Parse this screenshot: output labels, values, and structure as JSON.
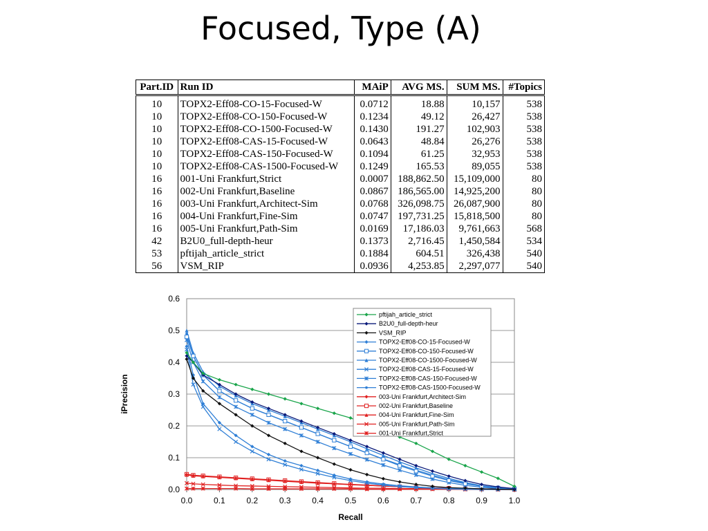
{
  "slide": {
    "title": "Focused, Type (A)"
  },
  "table": {
    "columns": [
      "Part.ID",
      "Run ID",
      "MAiP",
      "AVG MS.",
      "SUM MS.",
      "#Topics"
    ],
    "rows": [
      [
        "10",
        "TOPX2-Eff08-CO-15-Focused-W",
        "0.0712",
        "18.88",
        "10,157",
        "538"
      ],
      [
        "10",
        "TOPX2-Eff08-CO-150-Focused-W",
        "0.1234",
        "49.12",
        "26,427",
        "538"
      ],
      [
        "10",
        "TOPX2-Eff08-CO-1500-Focused-W",
        "0.1430",
        "191.27",
        "102,903",
        "538"
      ],
      [
        "10",
        "TOPX2-Eff08-CAS-15-Focused-W",
        "0.0643",
        "48.84",
        "26,276",
        "538"
      ],
      [
        "10",
        "TOPX2-Eff08-CAS-150-Focused-W",
        "0.1094",
        "61.25",
        "32,953",
        "538"
      ],
      [
        "10",
        "TOPX2-Eff08-CAS-1500-Focused-W",
        "0.1249",
        "165.53",
        "89,055",
        "538"
      ],
      [
        "16",
        "001-Uni Frankfurt,Strict",
        "0.0007",
        "188,862.50",
        "15,109,000",
        "80"
      ],
      [
        "16",
        "002-Uni Frankfurt,Baseline",
        "0.0867",
        "186,565.00",
        "14,925,200",
        "80"
      ],
      [
        "16",
        "003-Uni Frankfurt,Architect-Sim",
        "0.0768",
        "326,098.75",
        "26,087,900",
        "80"
      ],
      [
        "16",
        "004-Uni Frankfurt,Fine-Sim",
        "0.0747",
        "197,731.25",
        "15,818,500",
        "80"
      ],
      [
        "16",
        "005-Uni Frankfurt,Path-Sim",
        "0.0169",
        "17,186.03",
        "9,761,663",
        "568"
      ],
      [
        "42",
        "B2U0_full-depth-heur",
        "0.1373",
        "2,716.45",
        "1,450,584",
        "534"
      ],
      [
        "53",
        "pftijah_article_strict",
        "0.1884",
        "604.51",
        "326,438",
        "540"
      ],
      [
        "56",
        "VSM_RIP",
        "0.0936",
        "4,253.85",
        "2,297,077",
        "540"
      ]
    ]
  },
  "chart_data": {
    "type": "line",
    "xlabel": "Recall",
    "ylabel": "iPrecision",
    "xlim": [
      0,
      1
    ],
    "ylim": [
      0,
      0.6
    ],
    "x_ticks": [
      "0.0",
      "0.1",
      "0.2",
      "0.3",
      "0.4",
      "0.5",
      "0.6",
      "0.7",
      "0.8",
      "0.9",
      "1.0"
    ],
    "y_ticks": [
      "0.0",
      "0.1",
      "0.2",
      "0.3",
      "0.4",
      "0.5",
      "0.6"
    ],
    "grid": "y-major",
    "legend_position": "top-right",
    "x": [
      0,
      0.02,
      0.05,
      0.1,
      0.15,
      0.2,
      0.25,
      0.3,
      0.35,
      0.4,
      0.45,
      0.5,
      0.55,
      0.6,
      0.65,
      0.7,
      0.75,
      0.8,
      0.85,
      0.9,
      0.95,
      1.0
    ],
    "series": [
      {
        "name": "pftijah_article_strict",
        "color": "#1aa54b",
        "marker": "diamond",
        "values": [
          0.43,
          0.4,
          0.365,
          0.345,
          0.33,
          0.315,
          0.3,
          0.285,
          0.27,
          0.255,
          0.24,
          0.225,
          0.205,
          0.185,
          0.165,
          0.145,
          0.12,
          0.095,
          0.075,
          0.055,
          0.035,
          0.01
        ]
      },
      {
        "name": "B2U0_full-depth-heur",
        "color": "#0a1a7a",
        "marker": "diamond",
        "values": [
          0.42,
          0.4,
          0.36,
          0.33,
          0.3,
          0.275,
          0.255,
          0.235,
          0.215,
          0.195,
          0.175,
          0.155,
          0.135,
          0.115,
          0.095,
          0.075,
          0.058,
          0.042,
          0.028,
          0.016,
          0.008,
          0.003
        ]
      },
      {
        "name": "VSM_RIP",
        "color": "#111111",
        "marker": "diamond",
        "values": [
          0.41,
          0.35,
          0.31,
          0.27,
          0.235,
          0.2,
          0.17,
          0.145,
          0.12,
          0.1,
          0.08,
          0.062,
          0.047,
          0.034,
          0.024,
          0.016,
          0.01,
          0.006,
          0.004,
          0.002,
          0.001,
          0.0
        ]
      },
      {
        "name": "TOPX2-Eff08-CO-15-Focused-W",
        "color": "#2f7fd6",
        "marker": "diamond",
        "values": [
          0.45,
          0.36,
          0.27,
          0.21,
          0.17,
          0.135,
          0.11,
          0.09,
          0.075,
          0.06,
          0.045,
          0.033,
          0.024,
          0.017,
          0.012,
          0.008,
          0.005,
          0.003,
          0.002,
          0.001,
          0.0,
          0.0
        ]
      },
      {
        "name": "TOPX2-Eff08-CO-150-Focused-W",
        "color": "#2f7fd6",
        "marker": "square-open",
        "values": [
          0.48,
          0.42,
          0.36,
          0.31,
          0.28,
          0.255,
          0.235,
          0.215,
          0.195,
          0.175,
          0.155,
          0.135,
          0.115,
          0.095,
          0.075,
          0.058,
          0.042,
          0.028,
          0.018,
          0.01,
          0.005,
          0.002
        ]
      },
      {
        "name": "TOPX2-Eff08-CO-1500-Focused-W",
        "color": "#2f7fd6",
        "marker": "triangle",
        "values": [
          0.5,
          0.43,
          0.37,
          0.325,
          0.295,
          0.27,
          0.25,
          0.23,
          0.21,
          0.19,
          0.17,
          0.15,
          0.128,
          0.107,
          0.087,
          0.068,
          0.05,
          0.035,
          0.022,
          0.012,
          0.006,
          0.002
        ]
      },
      {
        "name": "TOPX2-Eff08-CAS-15-Focused-W",
        "color": "#2f7fd6",
        "marker": "x",
        "values": [
          0.44,
          0.33,
          0.26,
          0.19,
          0.15,
          0.12,
          0.095,
          0.078,
          0.063,
          0.05,
          0.038,
          0.028,
          0.02,
          0.014,
          0.009,
          0.006,
          0.004,
          0.002,
          0.001,
          0.0,
          0.0,
          0.0
        ]
      },
      {
        "name": "TOPX2-Eff08-CAS-150-Focused-W",
        "color": "#2f7fd6",
        "marker": "star",
        "values": [
          0.47,
          0.4,
          0.34,
          0.29,
          0.26,
          0.235,
          0.21,
          0.19,
          0.17,
          0.15,
          0.13,
          0.112,
          0.094,
          0.077,
          0.061,
          0.046,
          0.033,
          0.022,
          0.013,
          0.007,
          0.003,
          0.001
        ]
      },
      {
        "name": "TOPX2-Eff08-CAS-1500-Focused-W",
        "color": "#2f7fd6",
        "marker": "circle",
        "values": [
          0.49,
          0.42,
          0.36,
          0.31,
          0.28,
          0.255,
          0.235,
          0.215,
          0.195,
          0.175,
          0.155,
          0.135,
          0.115,
          0.096,
          0.078,
          0.061,
          0.045,
          0.031,
          0.02,
          0.011,
          0.005,
          0.002
        ]
      },
      {
        "name": "003-Uni Frankfurt,Architect-Sim",
        "color": "#e02020",
        "marker": "diamond",
        "values": [
          0.047,
          0.044,
          0.042,
          0.039,
          0.036,
          0.033,
          0.03,
          0.027,
          0.024,
          0.021,
          0.018,
          0.016,
          0.013,
          0.011,
          0.009,
          0.007,
          0.005,
          0.004,
          0.003,
          0.002,
          0.001,
          0.0
        ]
      },
      {
        "name": "002-Uni Frankfurt,Baseline",
        "color": "#e02020",
        "marker": "square-open",
        "values": [
          0.048,
          0.045,
          0.043,
          0.04,
          0.037,
          0.034,
          0.031,
          0.028,
          0.025,
          0.022,
          0.019,
          0.016,
          0.014,
          0.011,
          0.009,
          0.007,
          0.005,
          0.004,
          0.003,
          0.002,
          0.001,
          0.0
        ]
      },
      {
        "name": "004-Uni Frankfurt,Fine-Sim",
        "color": "#e02020",
        "marker": "triangle",
        "values": [
          0.046,
          0.043,
          0.041,
          0.038,
          0.035,
          0.032,
          0.029,
          0.026,
          0.023,
          0.02,
          0.018,
          0.015,
          0.013,
          0.011,
          0.009,
          0.007,
          0.005,
          0.004,
          0.003,
          0.002,
          0.001,
          0.0
        ]
      },
      {
        "name": "005-Uni Frankfurt,Path-Sim",
        "color": "#e02020",
        "marker": "x",
        "values": [
          0.02,
          0.018,
          0.016,
          0.014,
          0.012,
          0.011,
          0.01,
          0.009,
          0.008,
          0.007,
          0.006,
          0.005,
          0.004,
          0.004,
          0.003,
          0.003,
          0.002,
          0.002,
          0.001,
          0.001,
          0.0,
          0.0
        ]
      },
      {
        "name": "001-Uni Frankfurt,Strict",
        "color": "#e02020",
        "marker": "star",
        "values": [
          0.003,
          0.003,
          0.003,
          0.003,
          0.003,
          0.002,
          0.002,
          0.002,
          0.002,
          0.002,
          0.002,
          0.002,
          0.001,
          0.001,
          0.001,
          0.001,
          0.001,
          0.001,
          0.0,
          0.0,
          0.0,
          0.0
        ]
      }
    ]
  }
}
